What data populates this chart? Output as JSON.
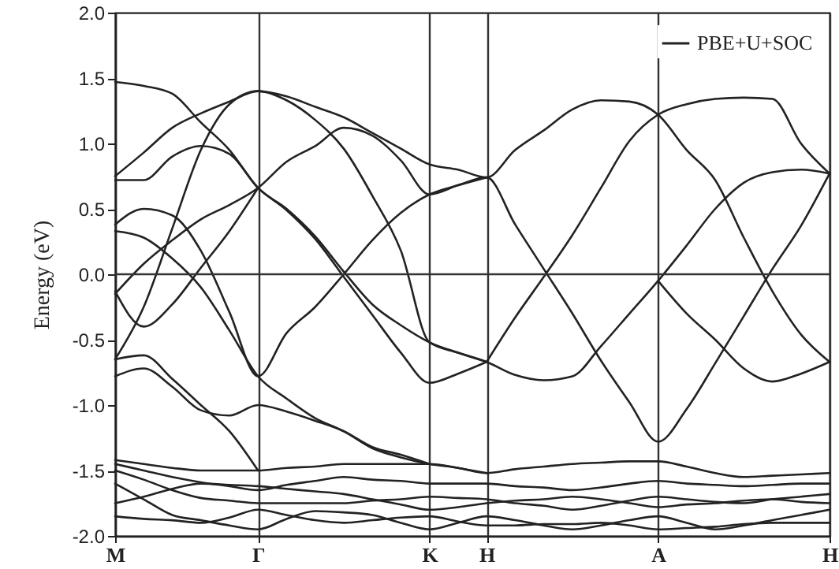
{
  "chart_data": {
    "type": "line",
    "ylabel": "Energy (eV)",
    "categories": [
      "M",
      null,
      null,
      null,
      null,
      "Γ",
      null,
      null,
      null,
      null,
      null,
      "K",
      null,
      "H",
      null,
      null,
      null,
      null,
      null,
      "A",
      null,
      null,
      null,
      null,
      null,
      "H"
    ],
    "ylim": [
      -2.0,
      2.0
    ],
    "yticks": [
      {
        "value": -2.0,
        "label": "-2.0"
      },
      {
        "value": -1.5,
        "label": "-1.5"
      },
      {
        "value": -1.0,
        "label": "-1.0"
      },
      {
        "value": -0.5,
        "label": "-0.5"
      },
      {
        "value": 0.0,
        "label": "0.0"
      },
      {
        "value": 0.5,
        "label": "0.5"
      },
      {
        "value": 1.0,
        "label": "1.0"
      },
      {
        "value": 1.5,
        "label": "1.5"
      },
      {
        "value": 2.0,
        "label": "2.0"
      }
    ],
    "grid": "x",
    "legend": "top right",
    "line_style": "solid",
    "ref_lines": [
      {
        "axis": "y",
        "value": 0.0,
        "label": null,
        "color": "#333333"
      }
    ],
    "series": [
      {
        "name": "PBE+U+SOC",
        "color": "#222222",
        "values": [
          0.75,
          0.93,
          1.12,
          1.23,
          1.32,
          1.4,
          1.36,
          1.28,
          1.2,
          1.08,
          0.96,
          0.84,
          0.8,
          0.74,
          0.95,
          1.1,
          1.26,
          1.33,
          1.32,
          1.22,
          0.95,
          0.72,
          0.28,
          -0.13,
          -0.46,
          -0.67
        ]
      },
      {
        "color": "#222222",
        "values": [
          1.47,
          1.44,
          1.38,
          1.16,
          0.95,
          0.66,
          0.5,
          0.29,
          0.02,
          -0.23,
          -0.39,
          -0.52,
          -0.6,
          -0.67,
          -0.77,
          -0.81,
          -0.78,
          -0.55,
          -0.3,
          -0.05,
          0.22,
          0.5,
          0.7,
          0.78,
          0.8,
          0.77
        ]
      },
      {
        "color": "#222222",
        "values": [
          0.72,
          0.72,
          0.9,
          0.98,
          0.92,
          0.66,
          0.49,
          0.27,
          -0.02,
          -0.31,
          -0.6,
          -0.83,
          -0.76,
          -0.67,
          null,
          null,
          null,
          null,
          null,
          null,
          null,
          null,
          null,
          null,
          null,
          null
        ]
      },
      {
        "color": "#222222",
        "values": [
          -0.15,
          0.08,
          0.26,
          0.42,
          0.53,
          0.66,
          0.86,
          0.98,
          1.12,
          1.06,
          0.87,
          0.61,
          0.68,
          0.74,
          0.38,
          0.04,
          -0.3,
          -0.66,
          -0.98,
          -1.28,
          -1.03,
          -0.68,
          -0.32,
          0.04,
          0.37,
          0.77
        ]
      },
      {
        "color": "#222222",
        "values": [
          -0.65,
          -0.25,
          0.35,
          0.95,
          1.3,
          1.4,
          1.33,
          1.18,
          0.96,
          0.6,
          0.18,
          -0.52,
          -0.6,
          -0.67,
          null,
          null,
          null,
          null,
          null,
          null,
          null,
          null,
          null,
          null,
          null,
          null
        ]
      },
      {
        "color": "#222222",
        "values": [
          0.38,
          0.5,
          0.45,
          0.18,
          -0.29,
          -0.78,
          -0.45,
          -0.25,
          0.0,
          0.26,
          0.47,
          0.61,
          0.68,
          0.74,
          null,
          null,
          null,
          null,
          null,
          null,
          null,
          null,
          null,
          null,
          null,
          null
        ]
      },
      {
        "color": "#222222",
        "values": [
          0.33,
          0.28,
          0.12,
          -0.1,
          -0.43,
          -0.78,
          -0.95,
          -1.1,
          -1.2,
          -1.33,
          -1.4,
          -1.45,
          -1.48,
          -1.52,
          null,
          null,
          null,
          null,
          null,
          null,
          null,
          null,
          null,
          null,
          null,
          null
        ]
      },
      {
        "color": "#222222",
        "values": [
          -0.13,
          -0.4,
          -0.23,
          0.05,
          0.33,
          0.66,
          null,
          null,
          null,
          null,
          null,
          null,
          null,
          null,
          null,
          null,
          null,
          null,
          null,
          null,
          null,
          null,
          null,
          null,
          null,
          null
        ]
      },
      {
        "color": "#222222",
        "values": [
          -0.78,
          -0.72,
          -0.86,
          -1.04,
          -1.08,
          -1.0,
          -1.05,
          -1.12,
          -1.2,
          -1.32,
          -1.38,
          -1.45,
          null,
          null,
          null,
          null,
          null,
          null,
          null,
          null,
          null,
          null,
          null,
          null,
          null,
          null
        ]
      },
      {
        "color": "#222222",
        "values": [
          -0.65,
          -0.62,
          -0.8,
          -1.0,
          -1.2,
          -1.5,
          null,
          null,
          null,
          null,
          null,
          null,
          null,
          null,
          null,
          null,
          null,
          null,
          null,
          null,
          null,
          null,
          null,
          null,
          null,
          null
        ]
      },
      {
        "color": "#222222",
        "values": [
          null,
          null,
          null,
          null,
          null,
          null,
          null,
          null,
          null,
          null,
          null,
          null,
          null,
          -0.67,
          -0.33,
          -0.02,
          0.3,
          0.66,
          1.02,
          1.22,
          1.3,
          1.34,
          1.35,
          1.34,
          1.0,
          0.77
        ]
      },
      {
        "color": "#222222",
        "values": [
          null,
          null,
          null,
          null,
          null,
          null,
          null,
          null,
          null,
          null,
          null,
          null,
          null,
          null,
          null,
          null,
          null,
          null,
          null,
          -0.05,
          -0.3,
          -0.5,
          -0.72,
          -0.82,
          -0.76,
          -0.67
        ]
      },
      {
        "color": "#222222",
        "values": [
          -1.42,
          -1.45,
          -1.48,
          -1.5,
          -1.5,
          -1.5,
          -1.48,
          -1.47,
          -1.45,
          -1.45,
          -1.45,
          -1.45,
          -1.48,
          -1.52,
          -1.49,
          -1.47,
          -1.45,
          -1.44,
          -1.43,
          -1.43,
          -1.47,
          -1.52,
          -1.55,
          -1.54,
          -1.53,
          -1.52
        ]
      },
      {
        "color": "#222222",
        "values": [
          -1.45,
          -1.5,
          -1.55,
          -1.59,
          -1.62,
          -1.65,
          -1.61,
          -1.58,
          -1.55,
          -1.57,
          -1.58,
          -1.6,
          -1.6,
          -1.6,
          -1.62,
          -1.63,
          -1.65,
          -1.63,
          -1.6,
          -1.58,
          -1.6,
          -1.61,
          -1.62,
          -1.61,
          -1.6,
          -1.6
        ]
      },
      {
        "color": "#222222",
        "values": [
          -1.5,
          -1.57,
          -1.65,
          -1.71,
          -1.73,
          -1.75,
          -1.75,
          -1.75,
          -1.75,
          -1.73,
          -1.72,
          -1.7,
          -1.71,
          -1.72,
          -1.75,
          -1.77,
          -1.8,
          -1.77,
          -1.73,
          -1.7,
          -1.72,
          -1.74,
          -1.75,
          -1.72,
          -1.7,
          -1.68
        ]
      },
      {
        "color": "#222222",
        "values": [
          -1.6,
          -1.72,
          -1.84,
          -1.88,
          -1.92,
          -1.95,
          -1.87,
          -1.81,
          -1.82,
          -1.84,
          -1.9,
          -1.95,
          -1.9,
          -1.85,
          -1.88,
          -1.92,
          -1.95,
          -1.92,
          -1.88,
          -1.85,
          -1.9,
          -1.95,
          -1.92,
          -1.88,
          -1.84,
          -1.8
        ]
      },
      {
        "color": "#222222",
        "values": [
          -1.75,
          -1.7,
          -1.64,
          -1.6,
          -1.61,
          -1.62,
          -1.64,
          -1.66,
          -1.68,
          -1.72,
          -1.76,
          -1.8,
          -1.78,
          -1.75,
          -1.73,
          -1.72,
          -1.7,
          -1.72,
          -1.75,
          -1.78,
          -1.76,
          -1.75,
          -1.73,
          -1.72,
          -1.74,
          -1.75
        ]
      },
      {
        "color": "#222222",
        "values": [
          -1.85,
          -1.87,
          -1.88,
          -1.9,
          -1.86,
          -1.8,
          -1.84,
          -1.88,
          -1.9,
          -1.88,
          -1.86,
          -1.85,
          -1.89,
          -1.92,
          -1.92,
          -1.91,
          -1.91,
          -1.9,
          -1.92,
          -1.95,
          -1.94,
          -1.93,
          -1.91,
          -1.9,
          -1.9,
          -1.9
        ]
      }
    ]
  }
}
